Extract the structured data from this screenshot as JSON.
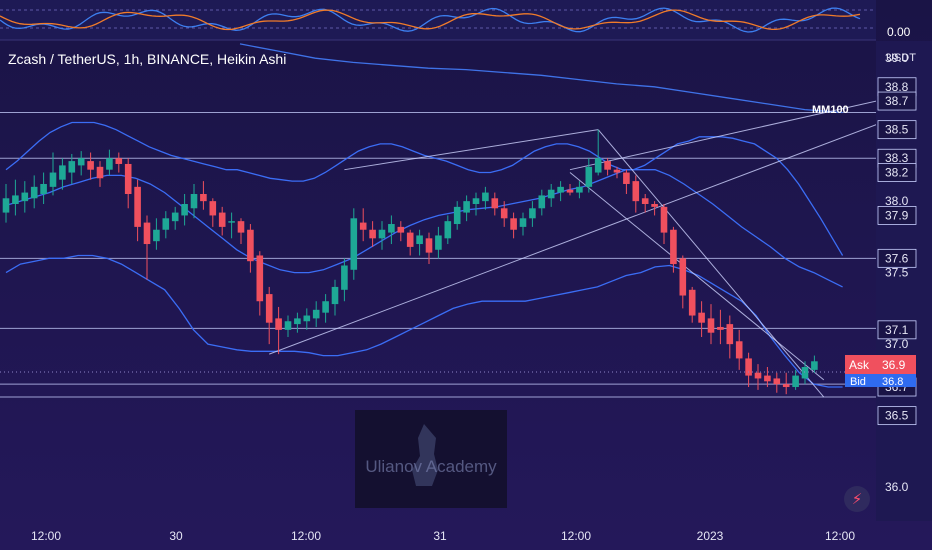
{
  "header": {
    "symbol_line": "Zcash / TetherUS, 1h, BINANCE, Heikin Ashi"
  },
  "oscillator": {
    "value_label": "0.00"
  },
  "price_axis": {
    "currency": "USDT"
  },
  "annotations": {
    "ma_label": "MM100"
  },
  "quote": {
    "ask_label": "Ask",
    "ask_value": "36.9",
    "bid_label": "Bid",
    "bid_value": "36.8"
  },
  "watermark": {
    "text": "Ulianov Academy"
  },
  "colors": {
    "background": "#1c1650",
    "up": "#1ea896",
    "down": "#f0505e",
    "band": "#3b6df5",
    "level": "#c9d0ff",
    "ask": "#f0505e",
    "bid": "#2f6bf0"
  },
  "icons": {
    "alert": "lightning-icon"
  },
  "chart_data": {
    "type": "candlestick",
    "title": "Zcash / TetherUS, 1h, BINANCE, Heikin Ashi",
    "ylim": [
      35.77,
      39.12
    ],
    "y_tick_labels": [
      "39.0",
      "38.8",
      "38.7",
      "38.5",
      "38.3",
      "38.2",
      "38.0",
      "37.9",
      "37.6",
      "37.5",
      "37.1",
      "37.0",
      "36.7",
      "36.5",
      "36.0"
    ],
    "y_tick_values": [
      39.0,
      38.8,
      38.7,
      38.5,
      38.3,
      38.2,
      38.0,
      37.9,
      37.6,
      37.5,
      37.1,
      37.0,
      36.7,
      36.5,
      36.0
    ],
    "highlighted_levels": [
      38.8,
      38.7,
      38.5,
      38.3,
      38.2,
      37.9,
      37.6,
      37.1,
      36.7,
      36.5
    ],
    "x_tick_labels": [
      "12:00",
      "30",
      "12:00",
      "31",
      "12:00",
      "2023",
      "12:00"
    ],
    "horizontal_levels": [
      38.62,
      38.3,
      37.6,
      37.11,
      36.72,
      36.63
    ],
    "candles": [
      {
        "o": 37.92,
        "h": 38.12,
        "l": 37.85,
        "c": 38.02
      },
      {
        "o": 37.98,
        "h": 38.15,
        "l": 37.9,
        "c": 38.04
      },
      {
        "o": 38.0,
        "h": 38.14,
        "l": 37.92,
        "c": 38.06
      },
      {
        "o": 38.02,
        "h": 38.18,
        "l": 37.95,
        "c": 38.1
      },
      {
        "o": 38.05,
        "h": 38.2,
        "l": 37.98,
        "c": 38.12
      },
      {
        "o": 38.1,
        "h": 38.34,
        "l": 38.04,
        "c": 38.2
      },
      {
        "o": 38.15,
        "h": 38.3,
        "l": 38.08,
        "c": 38.25
      },
      {
        "o": 38.2,
        "h": 38.33,
        "l": 38.12,
        "c": 38.28
      },
      {
        "o": 38.25,
        "h": 38.35,
        "l": 38.18,
        "c": 38.3
      },
      {
        "o": 38.28,
        "h": 38.34,
        "l": 38.15,
        "c": 38.22
      },
      {
        "o": 38.24,
        "h": 38.28,
        "l": 38.1,
        "c": 38.16
      },
      {
        "o": 38.22,
        "h": 38.36,
        "l": 38.18,
        "c": 38.3
      },
      {
        "o": 38.3,
        "h": 38.34,
        "l": 38.2,
        "c": 38.26
      },
      {
        "o": 38.26,
        "h": 38.3,
        "l": 37.95,
        "c": 38.05
      },
      {
        "o": 38.1,
        "h": 38.15,
        "l": 37.72,
        "c": 37.82
      },
      {
        "o": 37.85,
        "h": 37.9,
        "l": 37.45,
        "c": 37.7
      },
      {
        "o": 37.72,
        "h": 37.88,
        "l": 37.66,
        "c": 37.8
      },
      {
        "o": 37.8,
        "h": 37.93,
        "l": 37.74,
        "c": 37.88
      },
      {
        "o": 37.86,
        "h": 37.96,
        "l": 37.8,
        "c": 37.92
      },
      {
        "o": 37.9,
        "h": 38.05,
        "l": 37.83,
        "c": 37.98
      },
      {
        "o": 37.95,
        "h": 38.12,
        "l": 37.88,
        "c": 38.05
      },
      {
        "o": 38.05,
        "h": 38.14,
        "l": 37.94,
        "c": 38.0
      },
      {
        "o": 38.0,
        "h": 38.02,
        "l": 37.82,
        "c": 37.9
      },
      {
        "o": 37.92,
        "h": 37.96,
        "l": 37.76,
        "c": 37.82
      },
      {
        "o": 37.86,
        "h": 37.92,
        "l": 37.74,
        "c": 37.86
      },
      {
        "o": 37.86,
        "h": 37.88,
        "l": 37.7,
        "c": 37.78
      },
      {
        "o": 37.8,
        "h": 37.84,
        "l": 37.5,
        "c": 37.58
      },
      {
        "o": 37.62,
        "h": 37.65,
        "l": 37.2,
        "c": 37.3
      },
      {
        "o": 37.35,
        "h": 37.4,
        "l": 37.0,
        "c": 37.15
      },
      {
        "o": 37.18,
        "h": 37.26,
        "l": 36.93,
        "c": 37.1
      },
      {
        "o": 37.1,
        "h": 37.2,
        "l": 37.05,
        "c": 37.16
      },
      {
        "o": 37.14,
        "h": 37.22,
        "l": 37.08,
        "c": 37.18
      },
      {
        "o": 37.16,
        "h": 37.25,
        "l": 37.1,
        "c": 37.2
      },
      {
        "o": 37.18,
        "h": 37.3,
        "l": 37.12,
        "c": 37.24
      },
      {
        "o": 37.22,
        "h": 37.35,
        "l": 37.15,
        "c": 37.3
      },
      {
        "o": 37.28,
        "h": 37.45,
        "l": 37.2,
        "c": 37.4
      },
      {
        "o": 37.38,
        "h": 37.6,
        "l": 37.3,
        "c": 37.55
      },
      {
        "o": 37.52,
        "h": 37.95,
        "l": 37.45,
        "c": 37.88
      },
      {
        "o": 37.85,
        "h": 37.95,
        "l": 37.72,
        "c": 37.8
      },
      {
        "o": 37.8,
        "h": 37.86,
        "l": 37.68,
        "c": 37.74
      },
      {
        "o": 37.74,
        "h": 37.86,
        "l": 37.66,
        "c": 37.8
      },
      {
        "o": 37.78,
        "h": 37.9,
        "l": 37.7,
        "c": 37.84
      },
      {
        "o": 37.82,
        "h": 37.86,
        "l": 37.72,
        "c": 37.78
      },
      {
        "o": 37.78,
        "h": 37.8,
        "l": 37.62,
        "c": 37.68
      },
      {
        "o": 37.7,
        "h": 37.8,
        "l": 37.62,
        "c": 37.76
      },
      {
        "o": 37.74,
        "h": 37.78,
        "l": 37.56,
        "c": 37.64
      },
      {
        "o": 37.66,
        "h": 37.82,
        "l": 37.6,
        "c": 37.76
      },
      {
        "o": 37.74,
        "h": 37.9,
        "l": 37.7,
        "c": 37.86
      },
      {
        "o": 37.84,
        "h": 38.0,
        "l": 37.8,
        "c": 37.96
      },
      {
        "o": 37.92,
        "h": 38.04,
        "l": 37.86,
        "c": 38.0
      },
      {
        "o": 37.98,
        "h": 38.06,
        "l": 37.9,
        "c": 38.02
      },
      {
        "o": 38.0,
        "h": 38.1,
        "l": 37.94,
        "c": 38.06
      },
      {
        "o": 38.02,
        "h": 38.06,
        "l": 37.9,
        "c": 37.95
      },
      {
        "o": 37.95,
        "h": 38.0,
        "l": 37.82,
        "c": 37.88
      },
      {
        "o": 37.88,
        "h": 37.92,
        "l": 37.74,
        "c": 37.8
      },
      {
        "o": 37.82,
        "h": 37.92,
        "l": 37.76,
        "c": 37.88
      },
      {
        "o": 37.88,
        "h": 38.0,
        "l": 37.82,
        "c": 37.95
      },
      {
        "o": 37.95,
        "h": 38.08,
        "l": 37.9,
        "c": 38.04
      },
      {
        "o": 38.02,
        "h": 38.12,
        "l": 37.96,
        "c": 38.08
      },
      {
        "o": 38.06,
        "h": 38.14,
        "l": 38.0,
        "c": 38.1
      },
      {
        "o": 38.08,
        "h": 38.12,
        "l": 38.04,
        "c": 38.06
      },
      {
        "o": 38.06,
        "h": 38.14,
        "l": 38.02,
        "c": 38.1
      },
      {
        "o": 38.1,
        "h": 38.3,
        "l": 38.06,
        "c": 38.24
      },
      {
        "o": 38.2,
        "h": 38.5,
        "l": 38.18,
        "c": 38.3
      },
      {
        "o": 38.28,
        "h": 38.3,
        "l": 38.18,
        "c": 38.22
      },
      {
        "o": 38.22,
        "h": 38.24,
        "l": 38.16,
        "c": 38.2
      },
      {
        "o": 38.2,
        "h": 38.22,
        "l": 38.05,
        "c": 38.12
      },
      {
        "o": 38.14,
        "h": 38.18,
        "l": 37.92,
        "c": 38.0
      },
      {
        "o": 38.02,
        "h": 38.05,
        "l": 37.92,
        "c": 37.98
      },
      {
        "o": 37.98,
        "h": 38.0,
        "l": 37.9,
        "c": 37.96
      },
      {
        "o": 37.96,
        "h": 37.98,
        "l": 37.7,
        "c": 37.78
      },
      {
        "o": 37.8,
        "h": 37.82,
        "l": 37.5,
        "c": 37.56
      },
      {
        "o": 37.6,
        "h": 37.62,
        "l": 37.25,
        "c": 37.34
      },
      {
        "o": 37.38,
        "h": 37.4,
        "l": 37.15,
        "c": 37.2
      },
      {
        "o": 37.22,
        "h": 37.3,
        "l": 37.05,
        "c": 37.15
      },
      {
        "o": 37.18,
        "h": 37.28,
        "l": 37.0,
        "c": 37.08
      },
      {
        "o": 37.12,
        "h": 37.24,
        "l": 37.0,
        "c": 37.1
      },
      {
        "o": 37.14,
        "h": 37.2,
        "l": 36.9,
        "c": 37.0
      },
      {
        "o": 37.02,
        "h": 37.1,
        "l": 36.82,
        "c": 36.9
      },
      {
        "o": 36.9,
        "h": 36.94,
        "l": 36.7,
        "c": 36.78
      },
      {
        "o": 36.8,
        "h": 36.86,
        "l": 36.68,
        "c": 36.76
      },
      {
        "o": 36.78,
        "h": 36.84,
        "l": 36.7,
        "c": 36.74
      },
      {
        "o": 36.76,
        "h": 36.8,
        "l": 36.66,
        "c": 36.72
      },
      {
        "o": 36.72,
        "h": 36.8,
        "l": 36.65,
        "c": 36.7
      },
      {
        "o": 36.7,
        "h": 36.82,
        "l": 36.68,
        "c": 36.78
      },
      {
        "o": 36.76,
        "h": 36.88,
        "l": 36.72,
        "c": 36.84
      },
      {
        "o": 36.82,
        "h": 36.92,
        "l": 36.8,
        "c": 36.88
      }
    ],
    "band_upper": [
      38.22,
      38.28,
      38.35,
      38.42,
      38.48,
      38.52,
      38.55,
      38.55,
      38.55,
      38.53,
      38.5,
      38.46,
      38.42,
      38.38,
      38.35,
      38.32,
      38.3,
      38.28,
      38.26,
      38.24,
      38.22,
      38.22,
      38.2,
      38.18,
      38.16,
      38.15,
      38.14,
      38.14,
      38.16,
      38.2,
      38.25,
      38.3,
      38.35,
      38.38,
      38.4,
      38.4,
      38.38,
      38.35,
      38.32,
      38.3,
      38.28,
      38.25,
      38.22,
      38.2,
      38.2,
      38.22,
      38.25,
      38.3,
      38.35,
      38.38,
      38.4,
      38.4,
      38.38,
      38.35,
      38.3,
      38.25,
      38.22,
      38.22,
      38.25,
      38.3,
      38.35,
      38.4,
      38.42,
      38.45,
      38.45,
      38.45,
      38.44,
      38.42,
      38.4,
      38.35,
      38.3,
      38.22,
      38.12,
      38.0,
      37.88,
      37.75,
      37.62
    ],
    "band_mid": [
      37.97,
      38.0,
      38.03,
      38.06,
      38.1,
      38.13,
      38.16,
      38.18,
      38.18,
      38.16,
      38.12,
      38.06,
      37.98,
      37.9,
      37.82,
      37.74,
      37.66,
      37.6,
      37.56,
      37.52,
      37.5,
      37.5,
      37.52,
      37.56,
      37.6,
      37.66,
      37.72,
      37.78,
      37.83,
      37.87,
      37.9,
      37.92,
      37.94,
      37.95,
      37.96,
      37.98,
      38.0,
      38.02,
      38.05,
      38.08,
      38.1,
      38.14,
      38.18,
      38.22,
      38.22,
      38.22,
      38.18,
      38.12,
      38.05,
      37.98,
      37.9,
      37.82,
      37.75,
      37.68,
      37.6,
      37.54,
      37.5,
      37.45,
      37.4
    ],
    "band_lower": [
      37.5,
      37.56,
      37.58,
      37.6,
      37.6,
      37.62,
      37.62,
      37.6,
      37.56,
      37.5,
      37.44,
      37.38,
      37.25,
      37.1,
      37.0,
      36.98,
      36.96,
      36.95,
      36.95,
      36.95,
      36.95,
      36.94,
      36.92,
      36.92,
      36.94,
      36.96,
      37.0,
      37.05,
      37.1,
      37.15,
      37.2,
      37.25,
      37.28,
      37.3,
      37.3,
      37.3,
      37.3,
      37.32,
      37.34,
      37.36,
      37.38,
      37.4,
      37.44,
      37.48,
      37.5,
      37.54,
      37.55,
      37.52,
      37.48,
      37.42,
      37.36,
      37.3,
      37.2,
      37.05,
      36.92,
      36.8,
      36.72,
      36.7,
      36.7
    ],
    "ma100": [
      39.1,
      39.05,
      39.0,
      38.97,
      38.95,
      38.93,
      38.92,
      38.9,
      38.88,
      38.85,
      38.82,
      38.8,
      38.76,
      38.72,
      38.68,
      38.64,
      38.62
    ],
    "trend_lines": [
      {
        "from": [
          28,
          36.93
        ],
        "to": [
          96,
          38.62
        ]
      },
      {
        "from": [
          36,
          38.22
        ],
        "to": [
          63,
          38.5
        ]
      },
      {
        "from": [
          63,
          38.5
        ],
        "to": [
          87,
          36.63
        ]
      },
      {
        "from": [
          60,
          38.2
        ],
        "to": [
          87,
          36.75
        ]
      },
      {
        "from": [
          60,
          38.22
        ],
        "to": [
          96,
          38.75
        ]
      }
    ]
  }
}
